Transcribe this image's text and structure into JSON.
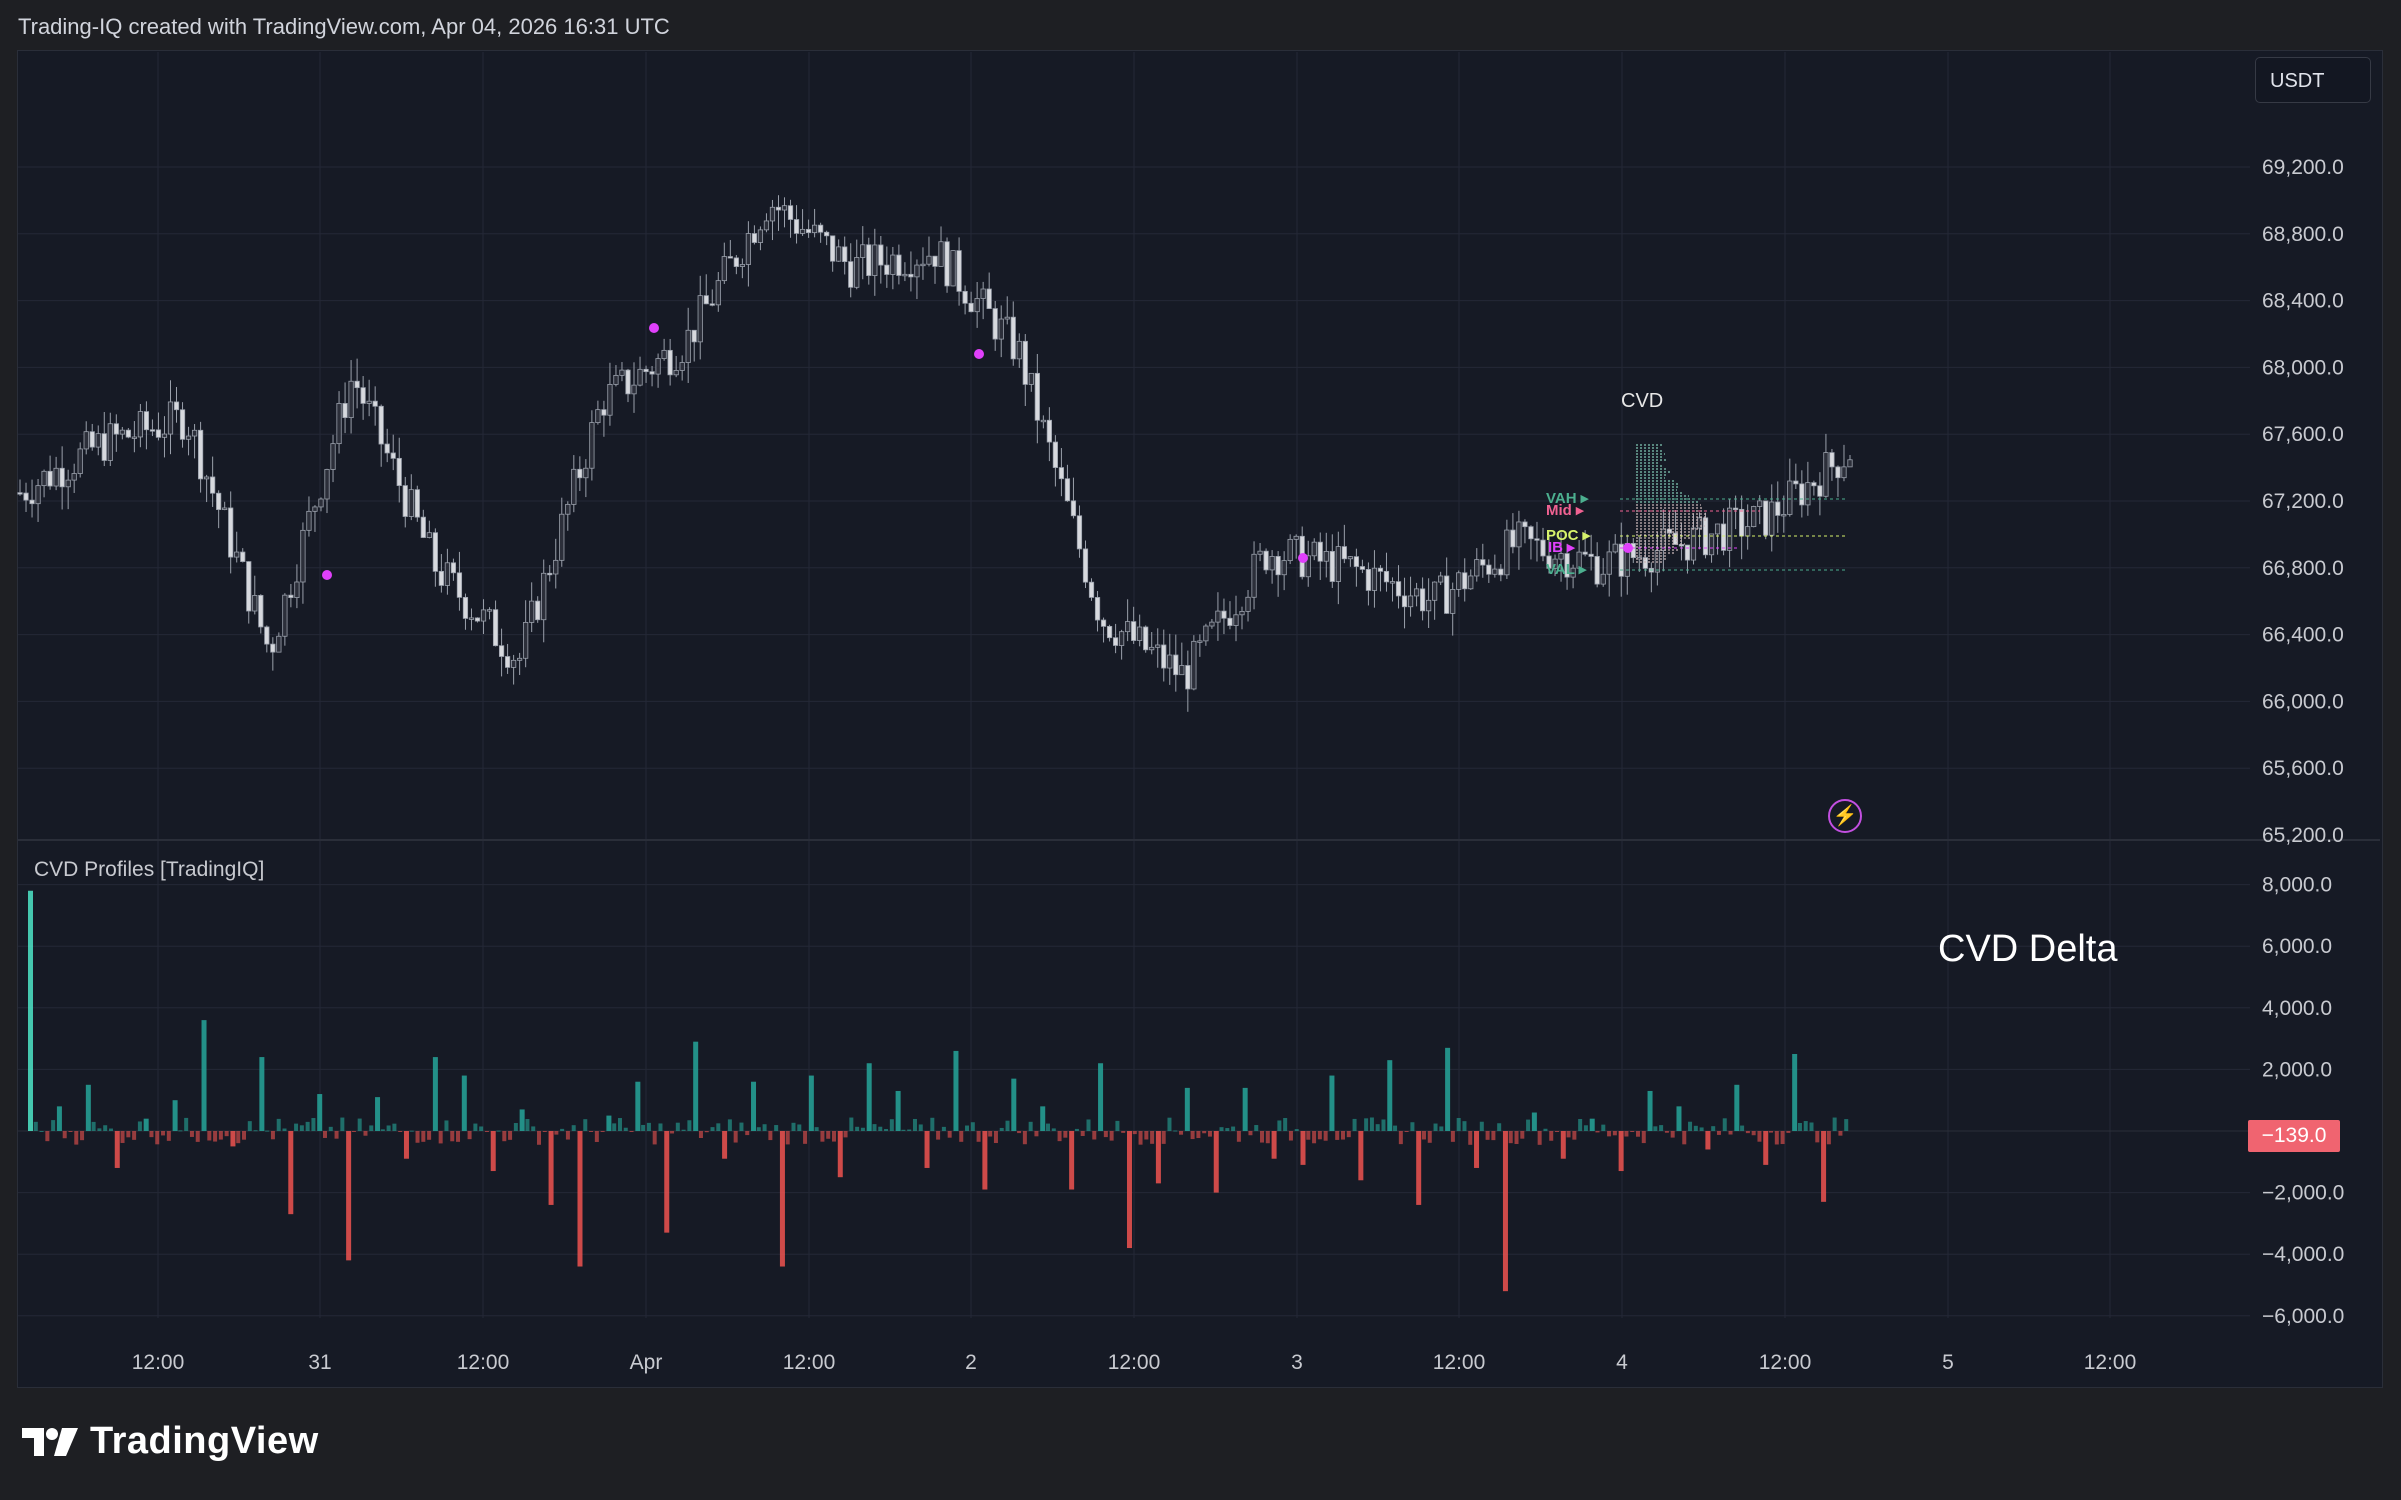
{
  "header": {
    "attribution": "Trading-IQ created with TradingView.com, Apr 04, 2026 16:31 UTC"
  },
  "price_pane": {
    "currency_button": "USDT",
    "price_ticks": [
      "69,200.0",
      "68,800.0",
      "68,400.0",
      "68,000.0",
      "67,600.0",
      "67,200.0",
      "66,800.0",
      "66,400.0",
      "66,000.0",
      "65,600.0",
      "65,200.0"
    ],
    "cvd_label": "CVD",
    "levels": [
      {
        "label": "VAH",
        "color": "#4caf8f"
      },
      {
        "label": "Mid",
        "color": "#f06292"
      },
      {
        "label": "POC",
        "color": "#d6f26c"
      },
      {
        "label": "IB",
        "color": "#e040fb"
      },
      {
        "label": "VAL",
        "color": "#4caf8f"
      }
    ],
    "bolt_icon": "lightning-icon"
  },
  "indicator_pane": {
    "title": "CVD Profiles [TradingIQ]",
    "big_label": "CVD Delta",
    "delta_ticks": [
      "8,000.0",
      "6,000.0",
      "4,000.0",
      "2,000.0",
      "−2,000.0",
      "−4,000.0",
      "−6,000.0"
    ],
    "last_value": "−139.0",
    "last_value_color": "#f06470",
    "positive_color": "#26a69a",
    "negative_color": "#ef5350"
  },
  "time_axis": {
    "labels": [
      "12:00",
      "31",
      "12:00",
      "Apr",
      "12:00",
      "2",
      "12:00",
      "3",
      "12:00",
      "4",
      "12:00",
      "5",
      "12:00"
    ]
  },
  "footer": {
    "brand": "TradingView"
  },
  "chart_data": [
    {
      "type": "line",
      "title": "",
      "xlabel": "",
      "ylabel": "",
      "x": [
        "Mar 30 06:00",
        "Mar 30 12:00",
        "Mar 30 18:00",
        "Mar 31 00:00",
        "Mar 31 06:00",
        "Mar 31 12:00",
        "Mar 31 18:00",
        "Apr 1 00:00",
        "Apr 1 06:00",
        "Apr 1 12:00",
        "Apr 1 18:00",
        "Apr 2 00:00",
        "Apr 2 06:00",
        "Apr 2 12:00",
        "Apr 2 18:00",
        "Apr 3 00:00",
        "Apr 3 06:00",
        "Apr 3 12:00",
        "Apr 3 18:00",
        "Apr 4 00:00",
        "Apr 4 06:00",
        "Apr 4 12:00",
        "Apr 4 16:00"
      ],
      "series": [
        {
          "values": [
            67250,
            67550,
            67700,
            66300,
            67950,
            66800,
            66250,
            67800,
            68150,
            69000,
            68600,
            68700,
            68100,
            66500,
            66150,
            66900,
            66800,
            66600,
            66950,
            66820,
            66950,
            67100,
            67500
          ]
        }
      ],
      "ylim": [
        65200,
        69600
      ]
    },
    {
      "type": "bar",
      "title": "",
      "xlabel": "",
      "ylabel": "",
      "values": [
        7800,
        800,
        1500,
        -1200,
        400,
        1000,
        3600,
        -500,
        2400,
        -2700,
        1200,
        -4200,
        1100,
        -900,
        2400,
        1800,
        -1300,
        700,
        -2400,
        -4400,
        500,
        1600,
        -3300,
        2900,
        -900,
        1600,
        -4400,
        1800,
        -1500,
        2200,
        1300,
        -1200,
        2600,
        -1900,
        1700,
        800,
        -1900,
        2200,
        -3800,
        -1700,
        1400,
        -2000,
        1400,
        -900,
        -1100,
        1800,
        -1600,
        2300,
        -2400,
        2700,
        -1200,
        -5200,
        600,
        -900,
        400,
        -1300,
        1300,
        800,
        -600,
        1500,
        -1100,
        2500,
        -2300
      ],
      "ylim": [
        -6000,
        8000
      ]
    }
  ]
}
